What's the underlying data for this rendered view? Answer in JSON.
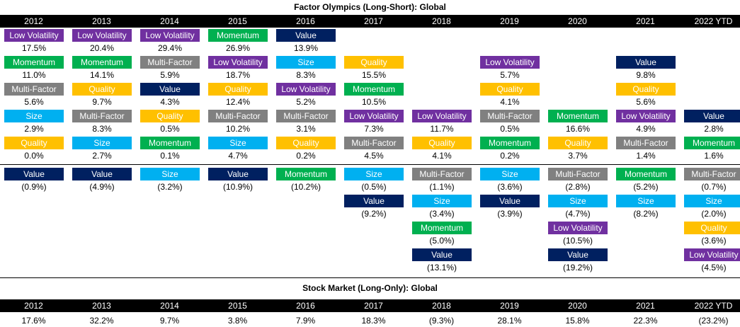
{
  "titles": {
    "factor": "Factor Olympics (Long-Short): Global",
    "market": "Stock Market (Long-Only): Global"
  },
  "colors": {
    "Low Volatility": "#7030A0",
    "Momentum": "#00B050",
    "Multi-Factor": "#808080",
    "Size": "#00B0F0",
    "Quality": "#FFC000",
    "Value": "#002060"
  },
  "chart_data": [
    {
      "type": "table",
      "title": "Factor Olympics (Long-Short): Global",
      "columns": [
        "2012",
        "2013",
        "2014",
        "2015",
        "2016",
        "2017",
        "2018",
        "2019",
        "2020",
        "2021",
        "2022 YTD"
      ],
      "series": [
        {
          "name": "Low Volatility",
          "values": [
            "17.5%",
            "20.4%",
            "29.4%",
            "18.7%",
            "5.2%",
            "7.3%",
            "11.7%",
            "5.7%",
            "(10.5%)",
            "4.9%",
            "(4.5%)"
          ]
        },
        {
          "name": "Momentum",
          "values": [
            "11.0%",
            "14.1%",
            "0.1%",
            "26.9%",
            "(10.2%)",
            "10.5%",
            "(5.0%)",
            "0.2%",
            "16.6%",
            "(5.2%)",
            "1.6%"
          ]
        },
        {
          "name": "Multi-Factor",
          "values": [
            "5.6%",
            "8.3%",
            "5.9%",
            "10.2%",
            "3.1%",
            "4.5%",
            "(1.1%)",
            "0.5%",
            "(2.8%)",
            "1.4%",
            "(0.7%)"
          ]
        },
        {
          "name": "Size",
          "values": [
            "2.9%",
            "2.7%",
            "(3.2%)",
            "4.7%",
            "8.3%",
            "(0.5%)",
            "(3.4%)",
            "(3.6%)",
            "(4.7%)",
            "(8.2%)",
            "(2.0%)"
          ]
        },
        {
          "name": "Quality",
          "values": [
            "0.0%",
            "9.7%",
            "0.5%",
            "12.4%",
            "0.2%",
            "15.5%",
            "4.1%",
            "4.1%",
            "3.7%",
            "5.6%",
            "(3.6%)"
          ]
        },
        {
          "name": "Value",
          "values": [
            "(0.9%)",
            "(4.9%)",
            "4.3%",
            "(10.9%)",
            "13.9%",
            "(9.2%)",
            "(13.1%)",
            "(3.9%)",
            "(19.2%)",
            "9.8%",
            "2.8%"
          ]
        }
      ],
      "ranking": [
        [
          [
            "Low Volatility",
            "17.5%"
          ],
          [
            "Momentum",
            "11.0%"
          ],
          [
            "Multi-Factor",
            "5.6%"
          ],
          [
            "Size",
            "2.9%"
          ],
          [
            "Quality",
            "0.0%"
          ],
          [
            "Value",
            "(0.9%)"
          ]
        ],
        [
          [
            "Low Volatility",
            "20.4%"
          ],
          [
            "Momentum",
            "14.1%"
          ],
          [
            "Quality",
            "9.7%"
          ],
          [
            "Multi-Factor",
            "8.3%"
          ],
          [
            "Size",
            "2.7%"
          ],
          [
            "Value",
            "(4.9%)"
          ]
        ],
        [
          [
            "Low Volatility",
            "29.4%"
          ],
          [
            "Multi-Factor",
            "5.9%"
          ],
          [
            "Value",
            "4.3%"
          ],
          [
            "Quality",
            "0.5%"
          ],
          [
            "Momentum",
            "0.1%"
          ],
          [
            "Size",
            "(3.2%)"
          ]
        ],
        [
          [
            "Momentum",
            "26.9%"
          ],
          [
            "Low Volatility",
            "18.7%"
          ],
          [
            "Quality",
            "12.4%"
          ],
          [
            "Multi-Factor",
            "10.2%"
          ],
          [
            "Size",
            "4.7%"
          ],
          [
            "Value",
            "(10.9%)"
          ]
        ],
        [
          [
            "Value",
            "13.9%"
          ],
          [
            "Size",
            "8.3%"
          ],
          [
            "Low Volatility",
            "5.2%"
          ],
          [
            "Multi-Factor",
            "3.1%"
          ],
          [
            "Quality",
            "0.2%"
          ],
          [
            "Momentum",
            "(10.2%)"
          ]
        ],
        [
          [
            "Quality",
            "15.5%"
          ],
          [
            "Momentum",
            "10.5%"
          ],
          [
            "Low Volatility",
            "7.3%"
          ],
          [
            "Multi-Factor",
            "4.5%"
          ],
          [
            "Size",
            "(0.5%)"
          ],
          [
            "Value",
            "(9.2%)"
          ]
        ],
        [
          [
            "Low Volatility",
            "11.7%"
          ],
          [
            "Quality",
            "4.1%"
          ],
          [
            "Multi-Factor",
            "(1.1%)"
          ],
          [
            "Size",
            "(3.4%)"
          ],
          [
            "Momentum",
            "(5.0%)"
          ],
          [
            "Value",
            "(13.1%)"
          ]
        ],
        [
          [
            "Low Volatility",
            "5.7%"
          ],
          [
            "Quality",
            "4.1%"
          ],
          [
            "Multi-Factor",
            "0.5%"
          ],
          [
            "Momentum",
            "0.2%"
          ],
          [
            "Size",
            "(3.6%)"
          ],
          [
            "Value",
            "(3.9%)"
          ]
        ],
        [
          [
            "Momentum",
            "16.6%"
          ],
          [
            "Quality",
            "3.7%"
          ],
          [
            "Multi-Factor",
            "(2.8%)"
          ],
          [
            "Size",
            "(4.7%)"
          ],
          [
            "Low Volatility",
            "(10.5%)"
          ],
          [
            "Value",
            "(19.2%)"
          ]
        ],
        [
          [
            "Value",
            "9.8%"
          ],
          [
            "Quality",
            "5.6%"
          ],
          [
            "Low Volatility",
            "4.9%"
          ],
          [
            "Multi-Factor",
            "1.4%"
          ],
          [
            "Momentum",
            "(5.2%)"
          ],
          [
            "Size",
            "(8.2%)"
          ]
        ],
        [
          [
            "Value",
            "2.8%"
          ],
          [
            "Momentum",
            "1.6%"
          ],
          [
            "Multi-Factor",
            "(0.7%)"
          ],
          [
            "Size",
            "(2.0%)"
          ],
          [
            "Quality",
            "(3.6%)"
          ],
          [
            "Low Volatility",
            "(4.5%)"
          ]
        ]
      ]
    },
    {
      "type": "table",
      "title": "Stock Market (Long-Only): Global",
      "columns": [
        "2012",
        "2013",
        "2014",
        "2015",
        "2016",
        "2017",
        "2018",
        "2019",
        "2020",
        "2021",
        "2022 YTD"
      ],
      "values": [
        "17.6%",
        "32.2%",
        "9.7%",
        "3.8%",
        "7.9%",
        "18.3%",
        "(9.3%)",
        "28.1%",
        "15.8%",
        "22.3%",
        "(23.2%)"
      ]
    }
  ]
}
